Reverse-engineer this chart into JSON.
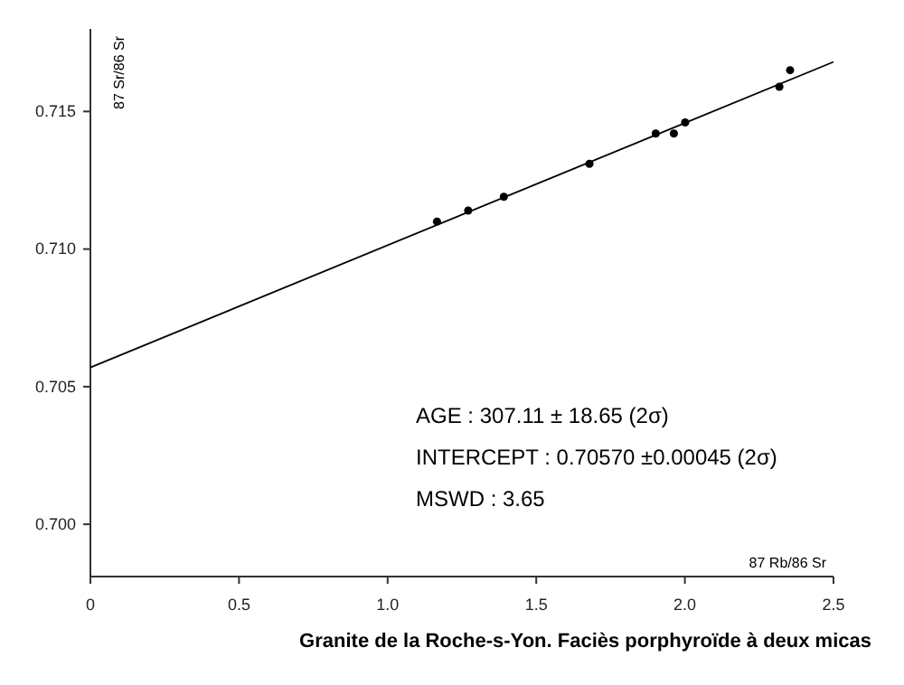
{
  "chart_data": {
    "type": "scatter",
    "title": "Granite de la Roche-s-Yon. Faciès porphyroïde à deux micas",
    "xlabel": "87 Rb/86 Sr",
    "ylabel": "87 Sr/86 Sr",
    "xlim": [
      0,
      2.5
    ],
    "ylim": [
      0.6981,
      0.718
    ],
    "xticks": [
      {
        "value": 0,
        "label": "0"
      },
      {
        "value": 0.5,
        "label": "0.5"
      },
      {
        "value": 1,
        "label": "1.0"
      },
      {
        "value": 1.5,
        "label": "1.5"
      },
      {
        "value": 2,
        "label": "2.0"
      },
      {
        "value": 2.5,
        "label": "2.5"
      }
    ],
    "yticks": [
      {
        "value": 0.7,
        "label": "0.700"
      },
      {
        "value": 0.705,
        "label": "0.705"
      },
      {
        "value": 0.71,
        "label": "0.710"
      },
      {
        "value": 0.715,
        "label": "0.715"
      }
    ],
    "grid": false,
    "marker": "circle",
    "series": [
      {
        "color": "#000000",
        "x": [
          1.166,
          1.271,
          1.391,
          1.679,
          1.902,
          1.963,
          2.001,
          2.318,
          2.354
        ],
        "values": [
          0.711,
          0.7114,
          0.7119,
          0.7131,
          0.7142,
          0.7142,
          0.7146,
          0.7159,
          0.7165
        ]
      },
      {
        "type": "line",
        "marker": "none",
        "color": "#000000",
        "x": [
          0,
          2.5
        ],
        "values": [
          0.7057,
          0.7168
        ]
      }
    ],
    "annotations": [
      "AGE : 307.11 ± 18.65 (2σ)",
      "INTERCEPT : 0.70570 ±0.00045 (2σ)",
      "MSWD : 3.65"
    ]
  }
}
